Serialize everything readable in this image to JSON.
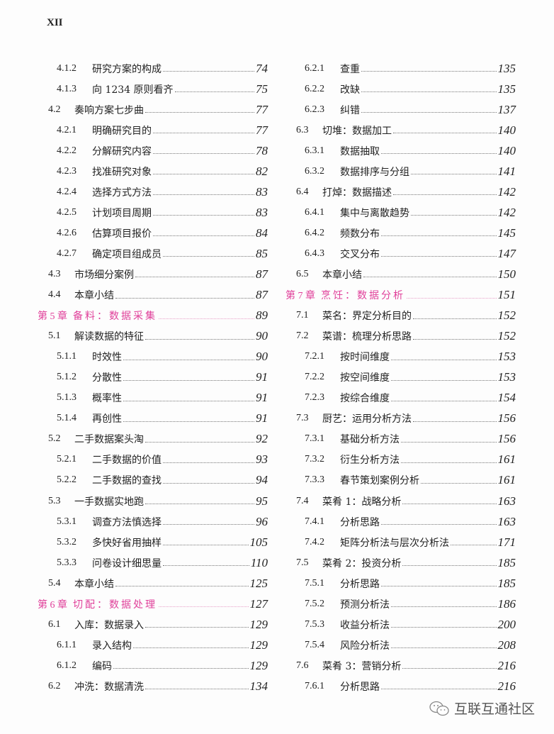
{
  "header": {
    "page_label": "XII"
  },
  "left": [
    {
      "num": "4.1.2",
      "title": "研究方案的构成",
      "page": "74",
      "level": 3
    },
    {
      "num": "4.1.3",
      "title": "向 1234 原则看齐",
      "page": "75",
      "level": 3
    },
    {
      "num": "4.2",
      "title": "奏响方案七步曲",
      "page": "77",
      "level": 2
    },
    {
      "num": "4.2.1",
      "title": "明确研究目的",
      "page": "77",
      "level": 3
    },
    {
      "num": "4.2.2",
      "title": "分解研究内容",
      "page": "78",
      "level": 3
    },
    {
      "num": "4.2.3",
      "title": "找准研究对象",
      "page": "82",
      "level": 3
    },
    {
      "num": "4.2.4",
      "title": "选择方式方法",
      "page": "83",
      "level": 3
    },
    {
      "num": "4.2.5",
      "title": "计划项目周期",
      "page": "83",
      "level": 3
    },
    {
      "num": "4.2.6",
      "title": "估算项目报价",
      "page": "84",
      "level": 3
    },
    {
      "num": "4.2.7",
      "title": "确定项目组成员",
      "page": "85",
      "level": 3
    },
    {
      "num": "4.3",
      "title": "市场细分案例",
      "page": "87",
      "level": 2
    },
    {
      "num": "4.4",
      "title": "本章小结",
      "page": "87",
      "level": 2
    },
    {
      "num": "第 5 章",
      "title": "备料：数据采集",
      "page": "89",
      "level": 1
    },
    {
      "num": "5.1",
      "title": "解读数据的特征",
      "page": "90",
      "level": 2
    },
    {
      "num": "5.1.1",
      "title": "时效性",
      "page": "90",
      "level": 3
    },
    {
      "num": "5.1.2",
      "title": "分散性",
      "page": "91",
      "level": 3
    },
    {
      "num": "5.1.3",
      "title": "概率性",
      "page": "91",
      "level": 3
    },
    {
      "num": "5.1.4",
      "title": "再创性",
      "page": "91",
      "level": 3
    },
    {
      "num": "5.2",
      "title": "二手数据案头淘",
      "page": "92",
      "level": 2
    },
    {
      "num": "5.2.1",
      "title": "二手数据的价值",
      "page": "93",
      "level": 3
    },
    {
      "num": "5.2.2",
      "title": "二手数据的查找",
      "page": "94",
      "level": 3
    },
    {
      "num": "5.3",
      "title": "一手数据实地跑",
      "page": "95",
      "level": 2
    },
    {
      "num": "5.3.1",
      "title": "调查方法慎选择",
      "page": "96",
      "level": 3
    },
    {
      "num": "5.3.2",
      "title": "多快好省用抽样",
      "page": "105",
      "level": 3
    },
    {
      "num": "5.3.3",
      "title": "问卷设计细思量",
      "page": "110",
      "level": 3
    },
    {
      "num": "5.4",
      "title": "本章小结",
      "page": "125",
      "level": 2
    },
    {
      "num": "第 6 章",
      "title": "切配：数据处理",
      "page": "127",
      "level": 1
    },
    {
      "num": "6.1",
      "title": "入库：数据录入",
      "page": "129",
      "level": 2
    },
    {
      "num": "6.1.1",
      "title": "录入结构",
      "page": "129",
      "level": 3
    },
    {
      "num": "6.1.2",
      "title": "编码",
      "page": "129",
      "level": 3
    },
    {
      "num": "6.2",
      "title": "冲洗：数据清洗",
      "page": "134",
      "level": 2
    }
  ],
  "right": [
    {
      "num": "6.2.1",
      "title": "查重",
      "page": "135",
      "level": 3
    },
    {
      "num": "6.2.2",
      "title": "改缺",
      "page": "135",
      "level": 3
    },
    {
      "num": "6.2.3",
      "title": "纠错",
      "page": "137",
      "level": 3
    },
    {
      "num": "6.3",
      "title": "切堆：数据加工",
      "page": "140",
      "level": 2
    },
    {
      "num": "6.3.1",
      "title": "数据抽取",
      "page": "140",
      "level": 3
    },
    {
      "num": "6.3.2",
      "title": "数据排序与分组",
      "page": "141",
      "level": 3
    },
    {
      "num": "6.4",
      "title": "打焯：数据描述",
      "page": "142",
      "level": 2
    },
    {
      "num": "6.4.1",
      "title": "集中与离散趋势",
      "page": "142",
      "level": 3
    },
    {
      "num": "6.4.2",
      "title": "频数分布",
      "page": "145",
      "level": 3
    },
    {
      "num": "6.4.3",
      "title": "交叉分布",
      "page": "147",
      "level": 3
    },
    {
      "num": "6.5",
      "title": "本章小结",
      "page": "150",
      "level": 2
    },
    {
      "num": "第 7 章",
      "title": "烹饪：数据分析",
      "page": "151",
      "level": 1
    },
    {
      "num": "7.1",
      "title": "菜名：界定分析目的",
      "page": "152",
      "level": 2
    },
    {
      "num": "7.2",
      "title": "菜谱：梳理分析思路",
      "page": "152",
      "level": 2
    },
    {
      "num": "7.2.1",
      "title": "按时间维度",
      "page": "153",
      "level": 3
    },
    {
      "num": "7.2.2",
      "title": "按空间维度",
      "page": "153",
      "level": 3
    },
    {
      "num": "7.2.3",
      "title": "按综合维度",
      "page": "154",
      "level": 3
    },
    {
      "num": "7.3",
      "title": "厨艺：运用分析方法",
      "page": "156",
      "level": 2
    },
    {
      "num": "7.3.1",
      "title": "基础分析方法",
      "page": "156",
      "level": 3
    },
    {
      "num": "7.3.2",
      "title": "衍生分析方法",
      "page": "161",
      "level": 3
    },
    {
      "num": "7.3.3",
      "title": "春节策划案例分析",
      "page": "161",
      "level": 3
    },
    {
      "num": "7.4",
      "title": "菜肴 1：战略分析",
      "page": "163",
      "level": 2
    },
    {
      "num": "7.4.1",
      "title": "分析思路",
      "page": "163",
      "level": 3
    },
    {
      "num": "7.4.2",
      "title": "矩阵分析法与层次分析法",
      "page": "171",
      "level": 3
    },
    {
      "num": "7.5",
      "title": "菜肴 2：投资分析",
      "page": "185",
      "level": 2
    },
    {
      "num": "7.5.1",
      "title": "分析思路",
      "page": "185",
      "level": 3
    },
    {
      "num": "7.5.2",
      "title": "预测分析法",
      "page": "186",
      "level": 3
    },
    {
      "num": "7.5.3",
      "title": "收益分析法",
      "page": "200",
      "level": 3
    },
    {
      "num": "7.5.4",
      "title": "风险分析法",
      "page": "208",
      "level": 3
    },
    {
      "num": "7.6",
      "title": "菜肴 3：营销分析",
      "page": "216",
      "level": 2
    },
    {
      "num": "7.6.1",
      "title": "分析思路",
      "page": "216",
      "level": 3
    }
  ],
  "watermark": {
    "text": "互联互通社区",
    "icon": "wechat-icon"
  },
  "colors": {
    "chapter": "#e0409a"
  }
}
